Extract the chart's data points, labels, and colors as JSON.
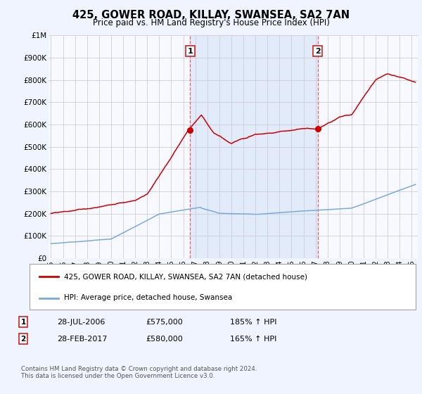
{
  "title": "425, GOWER ROAD, KILLAY, SWANSEA, SA2 7AN",
  "subtitle": "Price paid vs. HM Land Registry's House Price Index (HPI)",
  "background_color": "#f0f4ff",
  "plot_bg_color": "#f8f9ff",
  "grid_color": "#ccccdd",
  "ylim": [
    0,
    1000000
  ],
  "yticks": [
    0,
    100000,
    200000,
    300000,
    400000,
    500000,
    600000,
    700000,
    800000,
    900000,
    1000000
  ],
  "ytick_labels": [
    "£0",
    "£100K",
    "£200K",
    "£300K",
    "£400K",
    "£500K",
    "£600K",
    "£700K",
    "£800K",
    "£900K",
    "£1M"
  ],
  "xlim_start": 1994.8,
  "xlim_end": 2025.5,
  "xticks": [
    1995,
    1996,
    1997,
    1998,
    1999,
    2000,
    2001,
    2002,
    2003,
    2004,
    2005,
    2006,
    2007,
    2008,
    2009,
    2010,
    2011,
    2012,
    2013,
    2014,
    2015,
    2016,
    2017,
    2018,
    2019,
    2020,
    2021,
    2022,
    2023,
    2024,
    2025
  ],
  "sale1_x": 2006.57,
  "sale1_y": 575000,
  "sale1_label": "1",
  "sale1_date": "28-JUL-2006",
  "sale1_price": "£575,000",
  "sale1_hpi": "185% ↑ HPI",
  "sale2_x": 2017.17,
  "sale2_y": 580000,
  "sale2_label": "2",
  "sale2_date": "28-FEB-2017",
  "sale2_price": "£580,000",
  "sale2_hpi": "165% ↑ HPI",
  "property_line_color": "#cc0000",
  "hpi_line_color": "#7aaadd",
  "marker_color": "#cc0000",
  "vline_color": "#ee5555",
  "shade_color": "#dce8f8",
  "legend_property_label": "425, GOWER ROAD, KILLAY, SWANSEA, SA2 7AN (detached house)",
  "legend_hpi_label": "HPI: Average price, detached house, Swansea",
  "footnote": "Contains HM Land Registry data © Crown copyright and database right 2024.\nThis data is licensed under the Open Government Licence v3.0."
}
